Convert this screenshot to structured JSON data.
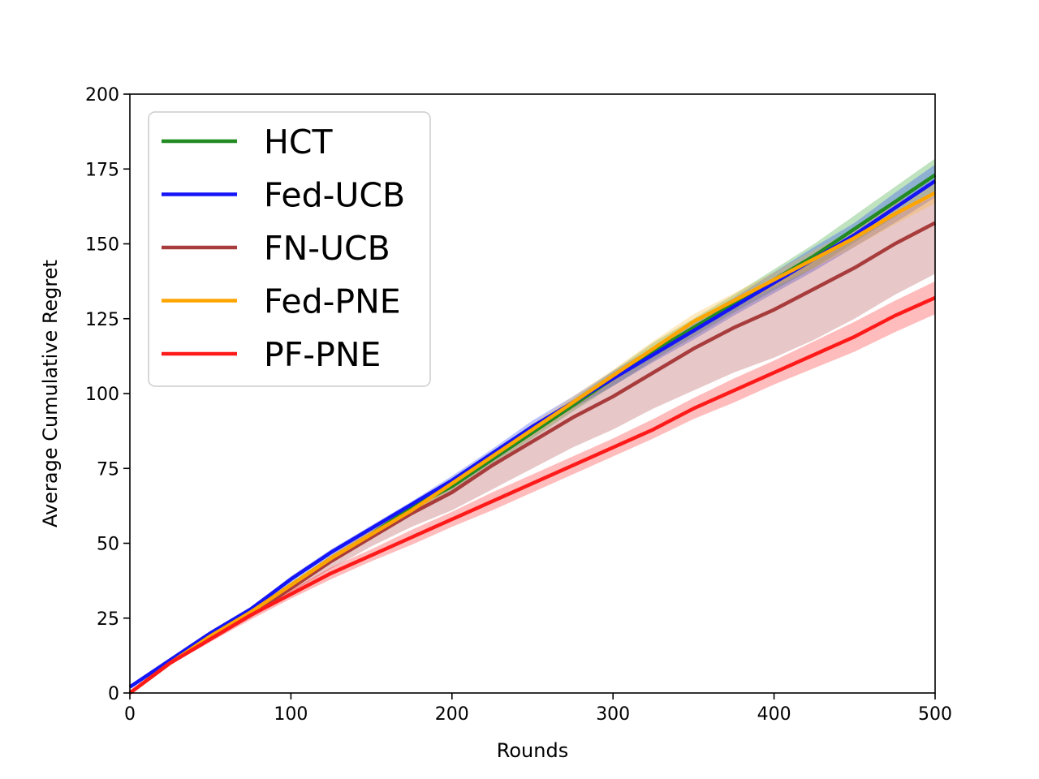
{
  "chart_data": {
    "type": "line",
    "title": "",
    "xlabel": "Rounds",
    "ylabel": "Average Cumulative Regret",
    "xlim": [
      0,
      500
    ],
    "ylim": [
      0,
      200
    ],
    "xticks": [
      0,
      100,
      200,
      300,
      400,
      500
    ],
    "yticks": [
      0,
      25,
      50,
      75,
      100,
      125,
      150,
      175,
      200
    ],
    "grid": false,
    "legend_position": "top-left",
    "series": [
      {
        "name": "HCT",
        "color": "#228b22",
        "band_color": "#2ca02c",
        "x": [
          0,
          25,
          50,
          75,
          100,
          125,
          150,
          175,
          200,
          225,
          250,
          275,
          300,
          325,
          350,
          375,
          400,
          425,
          450,
          475,
          500
        ],
        "y": [
          0,
          10,
          19,
          27,
          36,
          45,
          53,
          62,
          69,
          78,
          87,
          96,
          105,
          114,
          122,
          130,
          138,
          146,
          155,
          164,
          173
        ],
        "lower": [
          0,
          9.5,
          18.5,
          26.5,
          35,
          44,
          52,
          60.5,
          67.5,
          76.5,
          85,
          94,
          102.5,
          111,
          119,
          127,
          134.5,
          142,
          150.5,
          159,
          167.5
        ],
        "upper": [
          0,
          10.5,
          19.5,
          27.5,
          37,
          46,
          54,
          63.5,
          70.5,
          79.5,
          89,
          98,
          107.5,
          117,
          125,
          133,
          141.5,
          150,
          159.5,
          169,
          178.5
        ]
      },
      {
        "name": "Fed-UCB",
        "color": "#1515f5",
        "band_color": "#1f3fff",
        "x": [
          0,
          25,
          50,
          75,
          100,
          125,
          150,
          175,
          200,
          225,
          250,
          275,
          300,
          325,
          350,
          375,
          400,
          425,
          450,
          475,
          500
        ],
        "y": [
          2,
          11,
          20,
          28,
          38,
          47,
          55,
          63,
          71,
          80,
          89,
          97,
          105,
          113,
          121,
          129,
          137,
          145,
          153,
          162,
          171
        ],
        "lower": [
          1.5,
          10.5,
          19.5,
          27.5,
          37,
          46,
          54,
          62,
          69.5,
          78.5,
          87,
          95,
          102.5,
          110.5,
          118,
          126,
          133.5,
          141,
          149,
          157,
          165.5
        ],
        "upper": [
          2.5,
          11.5,
          20.5,
          28.5,
          39,
          48,
          56,
          64,
          72.5,
          81.5,
          91,
          99,
          107.5,
          115.5,
          124,
          132,
          140.5,
          149,
          157,
          167,
          176.5
        ]
      },
      {
        "name": "FN-UCB",
        "color": "#a83c3c",
        "band_color": "#b04545",
        "x": [
          0,
          25,
          50,
          75,
          100,
          125,
          150,
          175,
          200,
          225,
          250,
          275,
          300,
          325,
          350,
          375,
          400,
          425,
          450,
          475,
          500
        ],
        "y": [
          0,
          10,
          18,
          26,
          35,
          44,
          52,
          60,
          67,
          76,
          84,
          92,
          99,
          107,
          115,
          122,
          128,
          135,
          142,
          150,
          157
        ],
        "lower": [
          0,
          9.5,
          17.5,
          25,
          33.5,
          41.5,
          49,
          55.5,
          61,
          68,
          75,
          82,
          88,
          95,
          101,
          107,
          112,
          118,
          125,
          133,
          140
        ],
        "upper": [
          0,
          10.5,
          18.5,
          27,
          36.5,
          46,
          54.5,
          63,
          70.5,
          80,
          89,
          97,
          105,
          114,
          123,
          130,
          137,
          145,
          153,
          160,
          166
        ]
      },
      {
        "name": "Fed-PNE",
        "color": "#ffa500",
        "band_color": "#ffb52e",
        "x": [
          0,
          25,
          50,
          75,
          100,
          125,
          150,
          175,
          200,
          225,
          250,
          275,
          300,
          325,
          350,
          375,
          400,
          425,
          450,
          475,
          500
        ],
        "y": [
          0,
          10,
          19,
          27,
          36,
          45,
          53,
          61,
          70,
          79,
          88,
          97,
          106,
          115,
          124,
          131,
          138,
          145,
          152,
          160,
          167
        ],
        "lower": [
          0,
          9.5,
          18.5,
          26.5,
          35,
          44,
          52,
          60,
          68.5,
          77.5,
          86,
          95,
          104,
          112.5,
          121.5,
          128.5,
          135.5,
          142,
          149,
          156.5,
          163.5
        ],
        "upper": [
          0,
          10.5,
          19.5,
          27.5,
          37,
          46,
          54,
          62,
          71.5,
          80.5,
          90,
          99,
          108,
          117.5,
          126.5,
          133.5,
          140.5,
          148,
          155,
          163.5,
          170.5
        ]
      },
      {
        "name": "PF-PNE",
        "color": "#ff1a1a",
        "band_color": "#ff2020",
        "x": [
          0,
          25,
          50,
          75,
          100,
          125,
          150,
          175,
          200,
          225,
          250,
          275,
          300,
          325,
          350,
          375,
          400,
          425,
          450,
          475,
          500
        ],
        "y": [
          0,
          10,
          18,
          26,
          33,
          40,
          46,
          52,
          58,
          64,
          70,
          76,
          82,
          88,
          95,
          101,
          107,
          113,
          119,
          126,
          132
        ],
        "lower": [
          0,
          9.5,
          17,
          24.5,
          31.5,
          38,
          44,
          49.5,
          55.5,
          61,
          67,
          73,
          79,
          85,
          91.5,
          97,
          103,
          108.5,
          114,
          120.5,
          126.5
        ],
        "upper": [
          0,
          10.5,
          19,
          27.5,
          34.5,
          42,
          48,
          54.5,
          60.5,
          67,
          73,
          79,
          85,
          91.5,
          98.5,
          105,
          111,
          117.5,
          124,
          131,
          137.5
        ]
      }
    ]
  }
}
